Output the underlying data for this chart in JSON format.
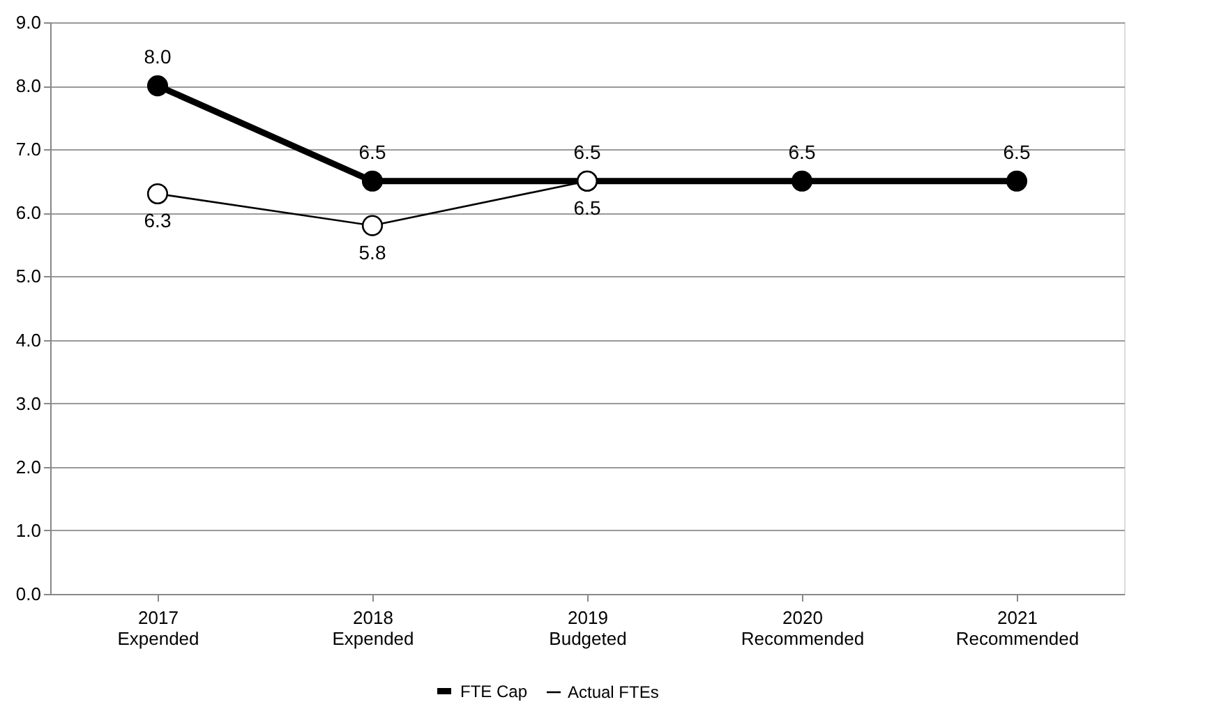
{
  "chart_data": {
    "type": "line",
    "categories": [
      "2017\nExpended",
      "2018\nExpended",
      "2019\nBudgeted",
      "2020\nRecommended",
      "2021\nRecommended"
    ],
    "series": [
      {
        "name": "FTE Cap",
        "color": "#000000",
        "values": [
          8.0,
          6.5,
          6.5,
          6.5,
          6.5
        ],
        "value_labels": [
          "8.0",
          "6.5",
          "6.5",
          "6.5",
          "6.5"
        ]
      },
      {
        "name": "Actual FTEs",
        "color": "#000000",
        "values": [
          6.3,
          5.8,
          6.5,
          null,
          null
        ],
        "value_labels": [
          "6.3",
          "5.8",
          "6.5",
          null,
          null
        ]
      }
    ],
    "ylim": [
      0,
      9
    ],
    "yticks": [
      {
        "value": 0,
        "label": "0.0"
      },
      {
        "value": 1,
        "label": "1.0"
      },
      {
        "value": 2,
        "label": "2.0"
      },
      {
        "value": 3,
        "label": "3.0"
      },
      {
        "value": 4,
        "label": "4.0"
      },
      {
        "value": 5,
        "label": "5.0"
      },
      {
        "value": 6,
        "label": "6.0"
      },
      {
        "value": 7,
        "label": "7.0"
      },
      {
        "value": 8,
        "label": "8.0"
      },
      {
        "value": 9,
        "label": "9.0"
      }
    ],
    "grid": "y",
    "legend": "bottom",
    "marker": "circle",
    "line_style": "solid"
  }
}
